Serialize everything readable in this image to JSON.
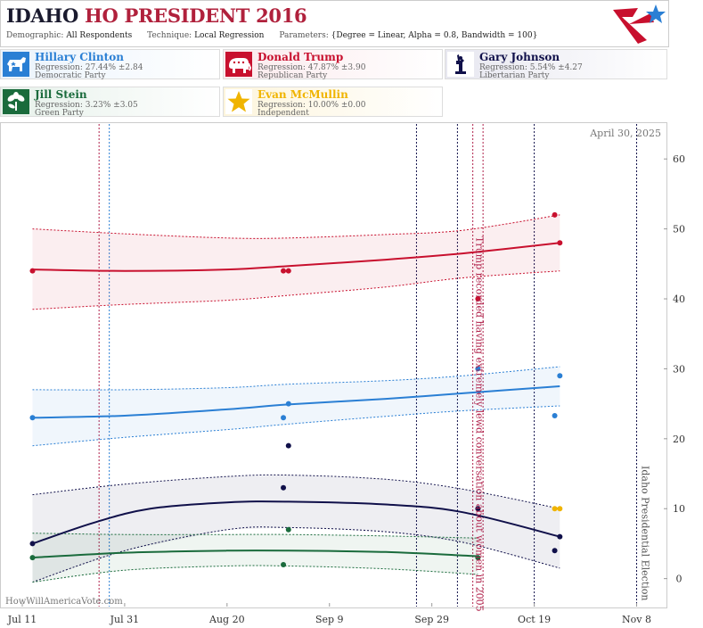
{
  "header": {
    "title_state": "IDAHO",
    "title_rest": "HO PRESIDENT 2016",
    "demographic_label": "Demographic:",
    "demographic_value": "All Respondents",
    "technique_label": "Technique:",
    "technique_value": "Local Regression",
    "parameters_label": "Parameters:",
    "parameters_value": "{Degree = Linear, Alpha = 0.8, Bandwidth = 100}"
  },
  "candidates": [
    {
      "name": "Hillary Clinton",
      "regression": "Regression: 27.44% ±2.84",
      "party": "Democratic Party",
      "color": "#2a7fd4",
      "icon": "donkey-icon"
    },
    {
      "name": "Donald Trump",
      "regression": "Regression: 47.87% ±3.90",
      "party": "Republican Party",
      "color": "#c8102e",
      "icon": "elephant-icon"
    },
    {
      "name": "Gary Johnson",
      "regression": "Regression: 5.54% ±4.27",
      "party": "Libertarian Party",
      "color": "#10104a",
      "icon": "statue-of-liberty-icon"
    },
    {
      "name": "Jill Stein",
      "regression": "Regression: 3.23% ±3.05",
      "party": "Green Party",
      "color": "#1a6b3c",
      "icon": "flower-icon"
    },
    {
      "name": "Evan McMullin",
      "regression": "Regression: 10.00% ±0.00",
      "party": "Independent",
      "color": "#f0b400",
      "icon": "star-icon"
    }
  ],
  "chart_data": {
    "type": "line",
    "date_stamp": "April 30, 2025",
    "watermark": "HowWillAmericaVote.com",
    "x_ticks": [
      "Jul 11",
      "Jul 31",
      "Aug 20",
      "Sep 9",
      "Sep 29",
      "Oct 19",
      "Nov 8"
    ],
    "x_range": [
      "2016-07-07",
      "2016-11-14"
    ],
    "y_ticks": [
      "0",
      "10",
      "20",
      "30",
      "40",
      "50",
      "60"
    ],
    "ylim": [
      -4,
      65
    ],
    "event_annotation": "Trump recorded having extremely lewd conversation about women in 2005",
    "event_date": "2016-10-07",
    "election_label": "Idaho Presidential Election",
    "election_date": "2016-11-08",
    "vertical_markers": [
      {
        "date": "2016-07-26",
        "color": "#b0214a",
        "style": "dotted"
      },
      {
        "date": "2016-07-28",
        "color": "#2a7fd4",
        "style": "dotted"
      },
      {
        "date": "2016-09-26",
        "color": "#10104a",
        "style": "dotted"
      },
      {
        "date": "2016-10-04",
        "color": "#10104a",
        "style": "dotted"
      },
      {
        "date": "2016-10-07",
        "color": "#b0214a",
        "style": "dotted"
      },
      {
        "date": "2016-10-09",
        "color": "#b0214a",
        "style": "dotted"
      },
      {
        "date": "2016-10-19",
        "color": "#10104a",
        "style": "dotted"
      },
      {
        "date": "2016-11-08",
        "color": "#10104a",
        "style": "dotted"
      }
    ],
    "series": [
      {
        "name": "Donald Trump",
        "color": "#c8102e",
        "trend": [
          [
            "2016-07-13",
            44.2
          ],
          [
            "2016-07-31",
            44.0
          ],
          [
            "2016-08-20",
            44.2
          ],
          [
            "2016-09-01",
            44.7
          ],
          [
            "2016-09-20",
            45.6
          ],
          [
            "2016-10-05",
            46.5
          ],
          [
            "2016-10-24",
            48.0
          ]
        ],
        "upper": [
          [
            "2016-07-13",
            50.0
          ],
          [
            "2016-07-31",
            49.3
          ],
          [
            "2016-08-20",
            48.7
          ],
          [
            "2016-09-01",
            48.7
          ],
          [
            "2016-09-20",
            49.2
          ],
          [
            "2016-10-05",
            49.8
          ],
          [
            "2016-10-24",
            52.0
          ]
        ],
        "lower": [
          [
            "2016-07-13",
            38.5
          ],
          [
            "2016-07-31",
            39.2
          ],
          [
            "2016-08-20",
            39.8
          ],
          [
            "2016-09-01",
            40.5
          ],
          [
            "2016-09-20",
            41.7
          ],
          [
            "2016-10-05",
            43.0
          ],
          [
            "2016-10-24",
            44.0
          ]
        ],
        "points": [
          [
            "2016-07-13",
            44
          ],
          [
            "2016-08-31",
            44
          ],
          [
            "2016-09-01",
            44
          ],
          [
            "2016-10-08",
            40
          ],
          [
            "2016-10-23",
            52
          ],
          [
            "2016-10-24",
            48
          ]
        ]
      },
      {
        "name": "Hillary Clinton",
        "color": "#2a7fd4",
        "trend": [
          [
            "2016-07-13",
            23.0
          ],
          [
            "2016-07-31",
            23.3
          ],
          [
            "2016-08-20",
            24.2
          ],
          [
            "2016-09-01",
            24.9
          ],
          [
            "2016-09-20",
            25.7
          ],
          [
            "2016-10-05",
            26.5
          ],
          [
            "2016-10-24",
            27.5
          ]
        ],
        "upper": [
          [
            "2016-07-13",
            27.0
          ],
          [
            "2016-07-31",
            27.0
          ],
          [
            "2016-08-20",
            27.3
          ],
          [
            "2016-09-01",
            27.8
          ],
          [
            "2016-09-20",
            28.3
          ],
          [
            "2016-10-05",
            29.0
          ],
          [
            "2016-10-24",
            30.3
          ]
        ],
        "lower": [
          [
            "2016-07-13",
            19.0
          ],
          [
            "2016-07-31",
            20.2
          ],
          [
            "2016-08-20",
            21.3
          ],
          [
            "2016-09-01",
            22.1
          ],
          [
            "2016-09-20",
            23.2
          ],
          [
            "2016-10-05",
            24.0
          ],
          [
            "2016-10-24",
            24.7
          ]
        ],
        "points": [
          [
            "2016-07-13",
            23
          ],
          [
            "2016-08-31",
            23
          ],
          [
            "2016-09-01",
            25
          ],
          [
            "2016-10-08",
            30
          ],
          [
            "2016-10-23",
            23.3
          ],
          [
            "2016-10-24",
            29
          ]
        ]
      },
      {
        "name": "Gary Johnson",
        "color": "#10104a",
        "trend": [
          [
            "2016-07-13",
            5.0
          ],
          [
            "2016-07-25",
            8.0
          ],
          [
            "2016-08-05",
            10.0
          ],
          [
            "2016-08-20",
            10.9
          ],
          [
            "2016-09-01",
            11.0
          ],
          [
            "2016-09-20",
            10.6
          ],
          [
            "2016-10-05",
            9.5
          ],
          [
            "2016-10-24",
            6.0
          ]
        ],
        "upper": [
          [
            "2016-07-13",
            12.0
          ],
          [
            "2016-07-31",
            13.5
          ],
          [
            "2016-08-20",
            14.6
          ],
          [
            "2016-09-01",
            14.8
          ],
          [
            "2016-09-20",
            14.2
          ],
          [
            "2016-10-05",
            12.8
          ],
          [
            "2016-10-24",
            10.0
          ]
        ],
        "lower": [
          [
            "2016-07-13",
            -0.5
          ],
          [
            "2016-07-31",
            4.0
          ],
          [
            "2016-08-20",
            7.0
          ],
          [
            "2016-09-01",
            7.3
          ],
          [
            "2016-09-20",
            6.7
          ],
          [
            "2016-10-05",
            5.2
          ],
          [
            "2016-10-24",
            1.5
          ]
        ],
        "points": [
          [
            "2016-07-13",
            5
          ],
          [
            "2016-08-31",
            13
          ],
          [
            "2016-09-01",
            19
          ],
          [
            "2016-10-08",
            10
          ],
          [
            "2016-10-23",
            4
          ],
          [
            "2016-10-24",
            6
          ]
        ]
      },
      {
        "name": "Jill Stein",
        "color": "#1a6b3c",
        "trend": [
          [
            "2016-07-13",
            3.0
          ],
          [
            "2016-07-31",
            3.7
          ],
          [
            "2016-08-20",
            4.0
          ],
          [
            "2016-09-01",
            4.0
          ],
          [
            "2016-09-20",
            3.8
          ],
          [
            "2016-10-08",
            3.2
          ]
        ],
        "upper": [
          [
            "2016-07-13",
            6.5
          ],
          [
            "2016-07-31",
            6.3
          ],
          [
            "2016-08-20",
            6.3
          ],
          [
            "2016-09-01",
            6.3
          ],
          [
            "2016-09-20",
            6.1
          ],
          [
            "2016-10-08",
            5.8
          ]
        ],
        "lower": [
          [
            "2016-07-13",
            -0.5
          ],
          [
            "2016-07-31",
            1.2
          ],
          [
            "2016-08-20",
            1.8
          ],
          [
            "2016-09-01",
            1.8
          ],
          [
            "2016-09-20",
            1.4
          ],
          [
            "2016-10-08",
            0.6
          ]
        ],
        "points": [
          [
            "2016-07-13",
            3
          ],
          [
            "2016-08-31",
            2
          ],
          [
            "2016-09-01",
            7
          ],
          [
            "2016-10-08",
            3
          ]
        ]
      },
      {
        "name": "Evan McMullin",
        "color": "#f0b400",
        "trend": [],
        "upper": [],
        "lower": [],
        "points": [
          [
            "2016-10-23",
            10
          ],
          [
            "2016-10-24",
            10
          ]
        ]
      }
    ]
  }
}
